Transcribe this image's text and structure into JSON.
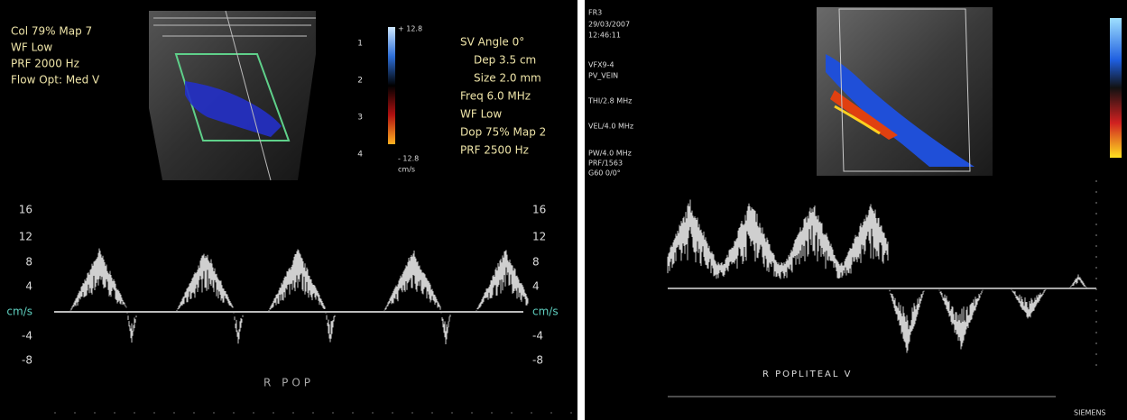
{
  "left_panel": {
    "settings": [
      "Col 79%  Map 7",
      "WF Low",
      "PRF 2000  Hz",
      "Flow Opt: Med V"
    ],
    "doppler_settings": [
      "SV Angle 0°",
      "Dep 3.5  cm",
      "Size 2.0  mm",
      "Freq 6.0  MHz",
      "WF Low",
      "Dop 75%  Map 2",
      "PRF 2500  Hz"
    ],
    "color_bar": {
      "max": "+ 12.8",
      "min": "- 12.8",
      "unit": "cm/s"
    },
    "depth_scale": [
      "1",
      "2",
      "3",
      "4"
    ],
    "velocity_scale": [
      "16",
      "12",
      "8",
      "4",
      "cm/s",
      "-4",
      "-8"
    ],
    "label": "R  POP"
  },
  "right_panel": {
    "info": [
      "FR3",
      "29/03/2007",
      "12:46:11",
      "VFX9-4",
      "PV_VEIN",
      "THI/2.8 MHz",
      "VEL/4.0 MHz",
      "PW/4.0 MHz",
      "PRF/1563",
      "G60 0/0°"
    ],
    "label": "R POPLITEAL V",
    "brand": "SIEMENS"
  }
}
